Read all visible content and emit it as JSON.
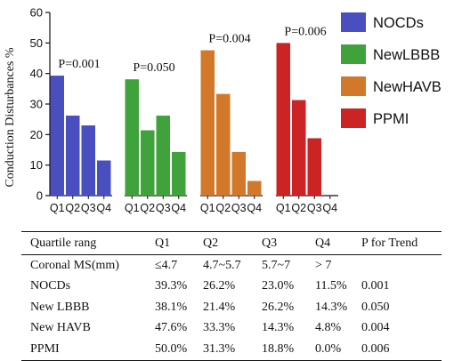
{
  "chart_data": {
    "type": "bar",
    "ylabel": "Conduction Disturbances %",
    "ylim": [
      0,
      60
    ],
    "yticks": [
      0,
      10,
      20,
      30,
      40,
      50,
      60
    ],
    "categories": [
      "Q1",
      "Q2",
      "Q3",
      "Q4"
    ],
    "grid": false,
    "legend_position": "right",
    "series": [
      {
        "name": "NOCDs",
        "color": "#4a4fbf",
        "values": [
          39.3,
          26.2,
          23.0,
          11.5
        ],
        "p_label": "P=0.001"
      },
      {
        "name": "NewLBBB",
        "color": "#3fa23a",
        "values": [
          38.1,
          21.4,
          26.2,
          14.3
        ],
        "p_label": "P=0.050"
      },
      {
        "name": "NewHAVB",
        "color": "#d2782b",
        "values": [
          47.6,
          33.3,
          14.3,
          4.8
        ],
        "p_label": "P=0.004"
      },
      {
        "name": "PPMI",
        "color": "#cc2424",
        "values": [
          50.0,
          31.3,
          18.8,
          0.0
        ],
        "p_label": "P=0.006"
      }
    ]
  },
  "table": {
    "header": [
      "Quartile rang",
      "Q1",
      "Q2",
      "Q3",
      "Q4",
      "P for Trend"
    ],
    "rows": [
      [
        "Coronal MS(mm)",
        "≤4.7",
        "4.7~5.7",
        "5.7~7",
        "> 7",
        ""
      ],
      [
        "NOCDs",
        "39.3%",
        "26.2%",
        "23.0%",
        "11.5%",
        "0.001"
      ],
      [
        "New LBBB",
        "38.1%",
        "21.4%",
        "26.2%",
        "14.3%",
        "0.050"
      ],
      [
        "New HAVB",
        "47.6%",
        "33.3%",
        "14.3%",
        "4.8%",
        "0.004"
      ],
      [
        "PPMI",
        "50.0%",
        "31.3%",
        "18.8%",
        "0.0%",
        "0.006"
      ]
    ]
  }
}
